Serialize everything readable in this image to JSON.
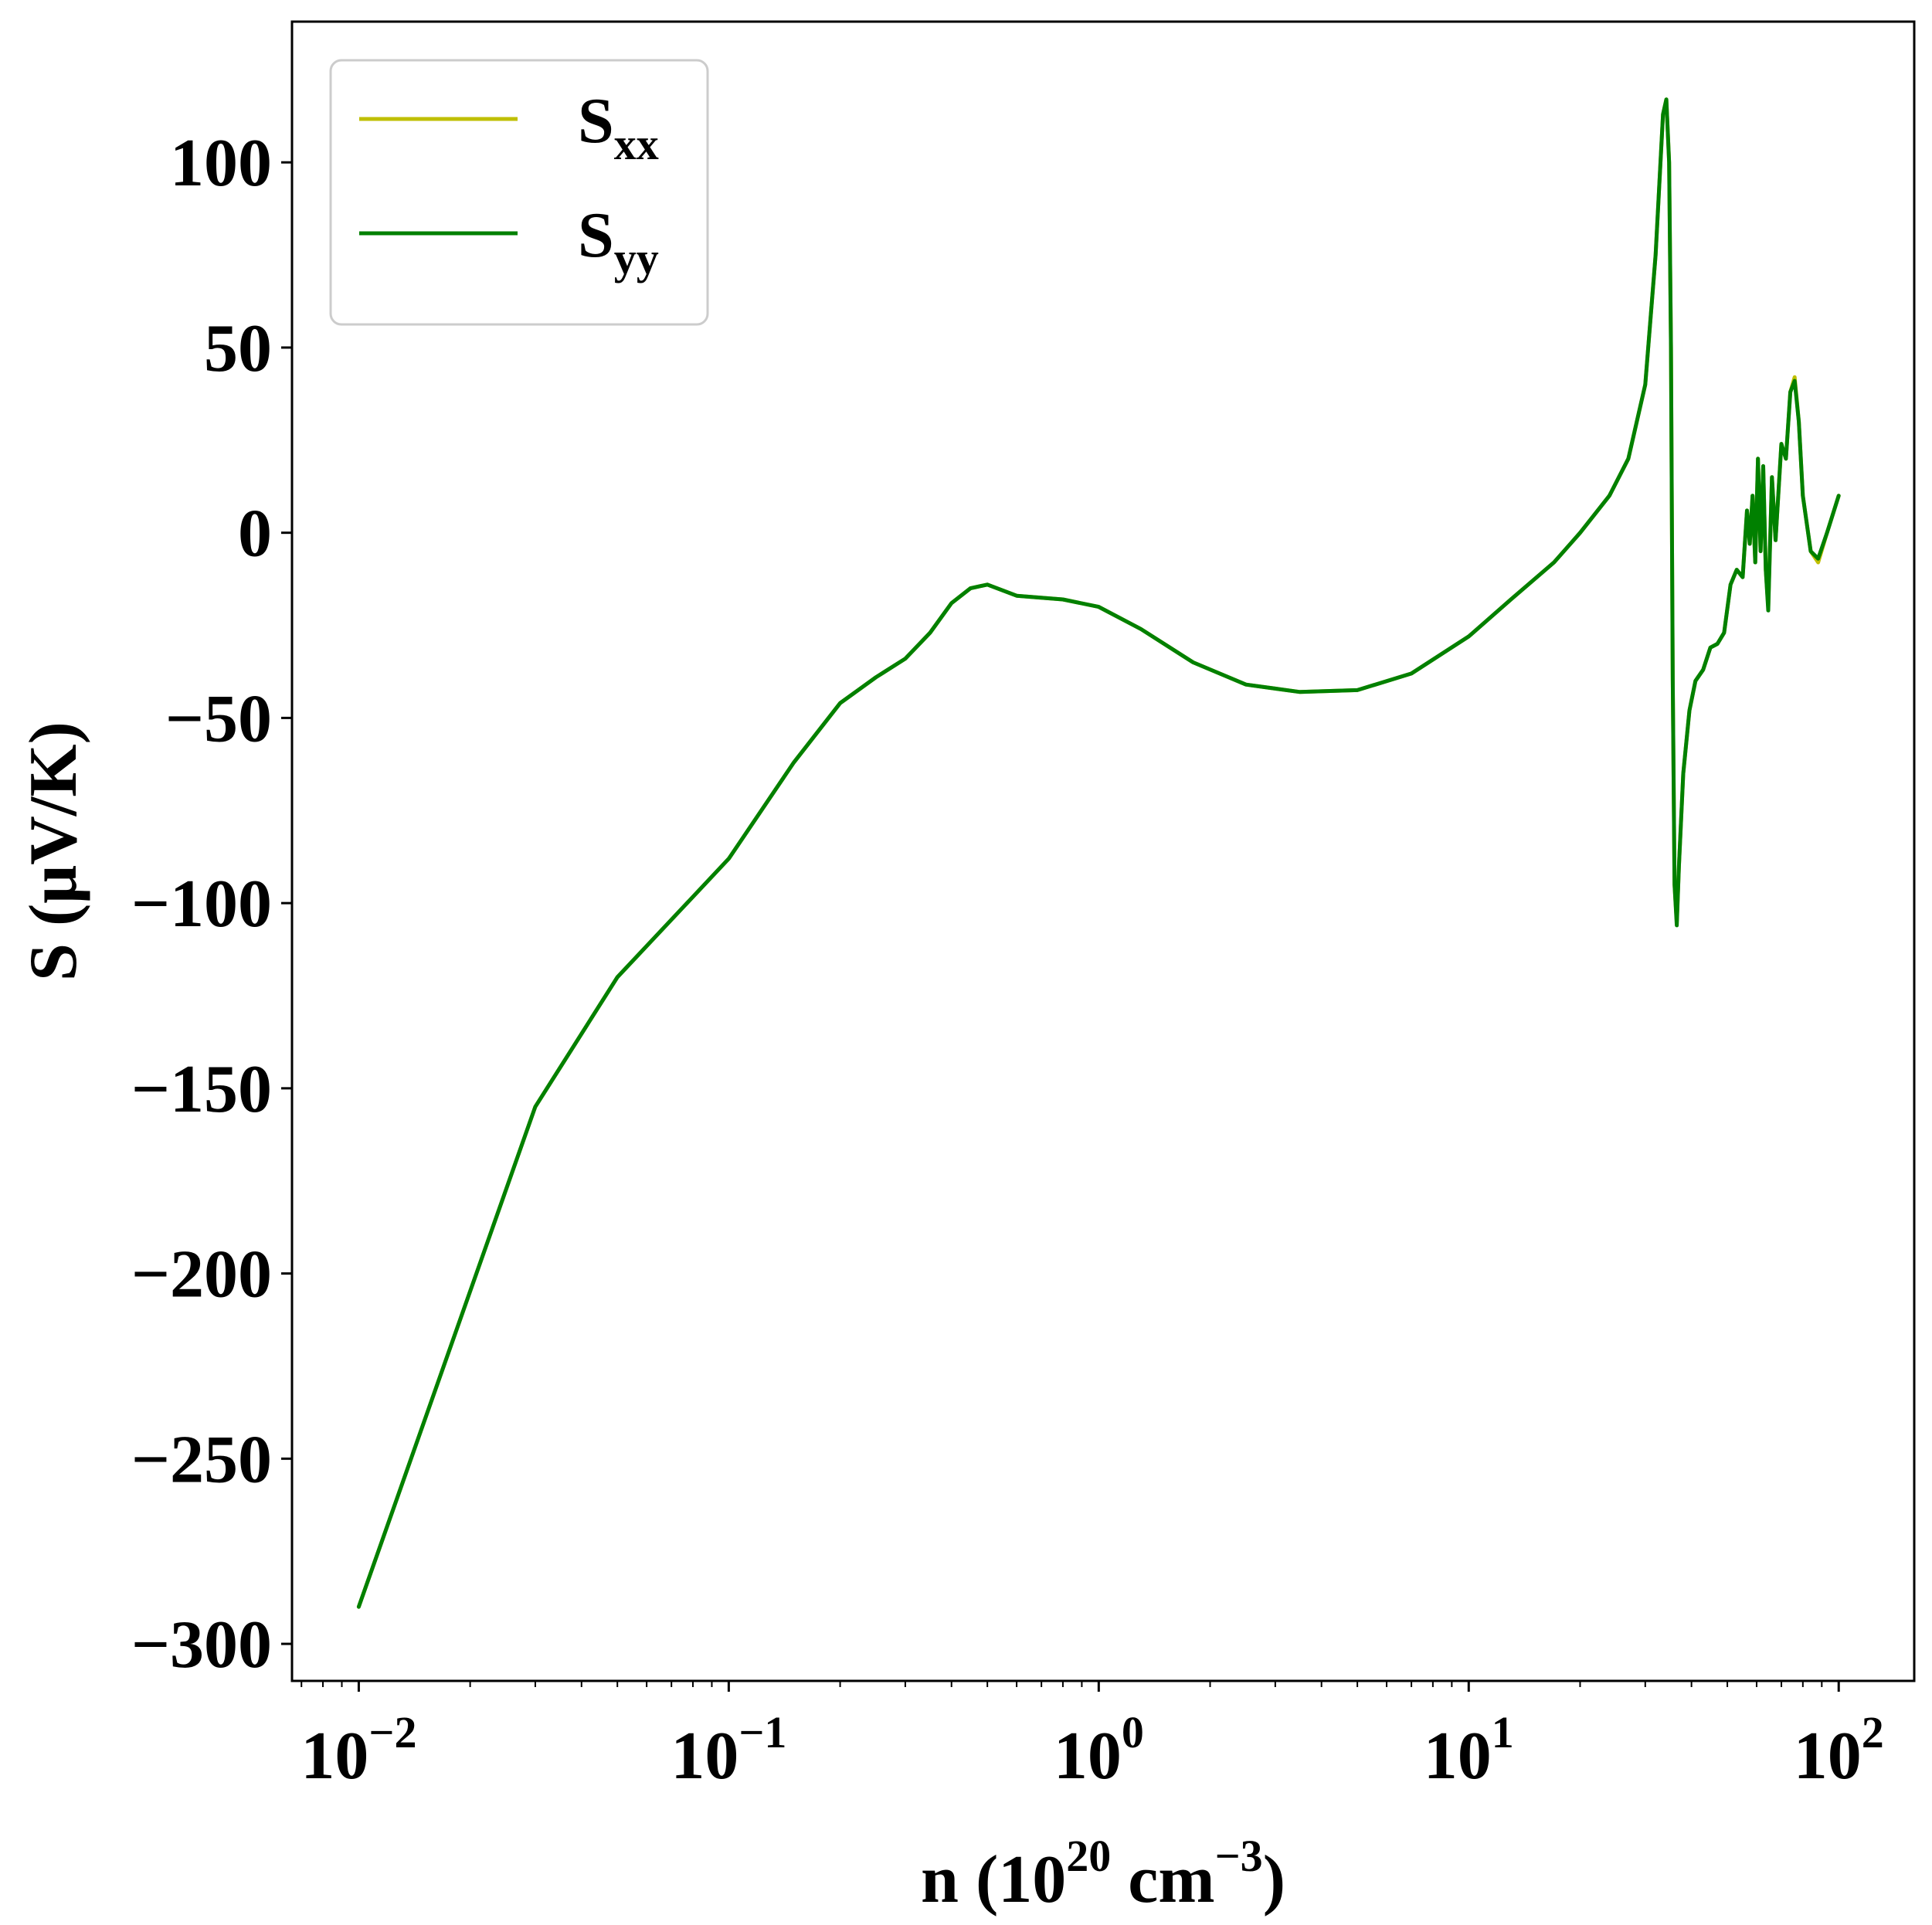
{
  "chart_data": {
    "type": "line",
    "xscale": "log",
    "xlim": [
      0.0066,
      160
    ],
    "ylim": [
      -310,
      138
    ],
    "xlabel": {
      "prefix": "n (10",
      "exp1": "20",
      "mid": " cm",
      "exp2": "−3",
      "suffix": ")"
    },
    "ylabel": "S (μV/K)",
    "xticks": [
      {
        "value": 0.01,
        "base": "10",
        "exp": "−2"
      },
      {
        "value": 0.1,
        "base": "10",
        "exp": "−1"
      },
      {
        "value": 1,
        "base": "10",
        "exp": "0"
      },
      {
        "value": 10,
        "base": "10",
        "exp": "1"
      },
      {
        "value": 100,
        "base": "10",
        "exp": "2"
      }
    ],
    "yticks": [
      {
        "value": 100,
        "label": "100"
      },
      {
        "value": 50,
        "label": "50"
      },
      {
        "value": 0,
        "label": "0"
      },
      {
        "value": -50,
        "label": "−50"
      },
      {
        "value": -100,
        "label": "−100"
      },
      {
        "value": -150,
        "label": "−150"
      },
      {
        "value": -200,
        "label": "−200"
      },
      {
        "value": -250,
        "label": "−250"
      },
      {
        "value": -300,
        "label": "−300"
      }
    ],
    "grid": false,
    "legend_position": "top-left",
    "series": [
      {
        "name": "S",
        "sub": "xx",
        "color": "#bfbf00",
        "points": [
          [
            0.01,
            -290
          ],
          [
            0.03,
            -155
          ],
          [
            0.05,
            -120
          ],
          [
            0.1,
            -88
          ],
          [
            0.15,
            -62
          ],
          [
            0.2,
            -46
          ],
          [
            0.25,
            -39
          ],
          [
            0.3,
            -34
          ],
          [
            0.35,
            -27
          ],
          [
            0.4,
            -19
          ],
          [
            0.45,
            -15
          ],
          [
            0.5,
            -14
          ],
          [
            0.6,
            -17
          ],
          [
            0.8,
            -18
          ],
          [
            1.0,
            -20
          ],
          [
            1.3,
            -26
          ],
          [
            1.8,
            -35
          ],
          [
            2.5,
            -41
          ],
          [
            3.5,
            -43
          ],
          [
            5.0,
            -42.5
          ],
          [
            7.0,
            -38
          ],
          [
            10,
            -28
          ],
          [
            13,
            -18
          ],
          [
            17,
            -8
          ],
          [
            20,
            0
          ],
          [
            24,
            10
          ],
          [
            27,
            20
          ],
          [
            30,
            40
          ],
          [
            32,
            75
          ],
          [
            33.5,
            113
          ],
          [
            34.2,
            117
          ],
          [
            34.8,
            100
          ],
          [
            35.2,
            50
          ],
          [
            35.6,
            -40
          ],
          [
            36,
            -95
          ],
          [
            36.5,
            -105
          ],
          [
            37,
            -90
          ],
          [
            38,
            -65
          ],
          [
            39.5,
            -48
          ],
          [
            41,
            -40
          ],
          [
            43,
            -37
          ],
          [
            45,
            -31
          ],
          [
            47,
            -30
          ],
          [
            49,
            -27
          ],
          [
            51,
            -14
          ],
          [
            53,
            -10
          ],
          [
            55,
            -12
          ],
          [
            56.5,
            6
          ],
          [
            57.5,
            -3
          ],
          [
            58.5,
            10
          ],
          [
            59.5,
            -8
          ],
          [
            60.5,
            20
          ],
          [
            61.5,
            -5
          ],
          [
            62.5,
            18
          ],
          [
            63.5,
            -10
          ],
          [
            64.5,
            -20
          ],
          [
            66,
            15
          ],
          [
            67.5,
            -2
          ],
          [
            70,
            24
          ],
          [
            72,
            20
          ],
          [
            74,
            38
          ],
          [
            76,
            42
          ],
          [
            78,
            30
          ],
          [
            80,
            10
          ],
          [
            84,
            -5
          ],
          [
            88,
            -8
          ],
          [
            93,
            0
          ],
          [
            100,
            10
          ]
        ]
      },
      {
        "name": "S",
        "sub": "yy",
        "color": "#008000",
        "points": [
          [
            0.01,
            -290
          ],
          [
            0.03,
            -155
          ],
          [
            0.05,
            -120
          ],
          [
            0.1,
            -88
          ],
          [
            0.15,
            -62
          ],
          [
            0.2,
            -46
          ],
          [
            0.25,
            -39
          ],
          [
            0.3,
            -34
          ],
          [
            0.35,
            -27
          ],
          [
            0.4,
            -19
          ],
          [
            0.45,
            -15
          ],
          [
            0.5,
            -14
          ],
          [
            0.6,
            -17
          ],
          [
            0.8,
            -18
          ],
          [
            1.0,
            -20
          ],
          [
            1.3,
            -26
          ],
          [
            1.8,
            -35
          ],
          [
            2.5,
            -41
          ],
          [
            3.5,
            -43
          ],
          [
            5.0,
            -42.5
          ],
          [
            7.0,
            -38
          ],
          [
            10,
            -28
          ],
          [
            13,
            -18
          ],
          [
            17,
            -8
          ],
          [
            20,
            0
          ],
          [
            24,
            10
          ],
          [
            27,
            20
          ],
          [
            30,
            40
          ],
          [
            32,
            75
          ],
          [
            33.5,
            113
          ],
          [
            34.2,
            117
          ],
          [
            34.8,
            100
          ],
          [
            35.2,
            50
          ],
          [
            35.6,
            -40
          ],
          [
            36,
            -95
          ],
          [
            36.5,
            -106
          ],
          [
            37,
            -90
          ],
          [
            38,
            -65
          ],
          [
            39.5,
            -48
          ],
          [
            41,
            -40
          ],
          [
            43,
            -37
          ],
          [
            45,
            -31
          ],
          [
            47,
            -30
          ],
          [
            49,
            -27
          ],
          [
            51,
            -14
          ],
          [
            53,
            -10
          ],
          [
            55,
            -12
          ],
          [
            56.5,
            6
          ],
          [
            57.5,
            -3
          ],
          [
            58.5,
            10
          ],
          [
            59.5,
            -8
          ],
          [
            60.5,
            20
          ],
          [
            61.5,
            -5
          ],
          [
            62.5,
            18
          ],
          [
            63.5,
            -10
          ],
          [
            64.5,
            -21
          ],
          [
            66,
            15
          ],
          [
            67.5,
            -2
          ],
          [
            70,
            24
          ],
          [
            72,
            20
          ],
          [
            74,
            38
          ],
          [
            76,
            41
          ],
          [
            78,
            30
          ],
          [
            80,
            10
          ],
          [
            84,
            -5
          ],
          [
            88,
            -7
          ],
          [
            93,
            0
          ],
          [
            100,
            10
          ]
        ]
      }
    ]
  }
}
